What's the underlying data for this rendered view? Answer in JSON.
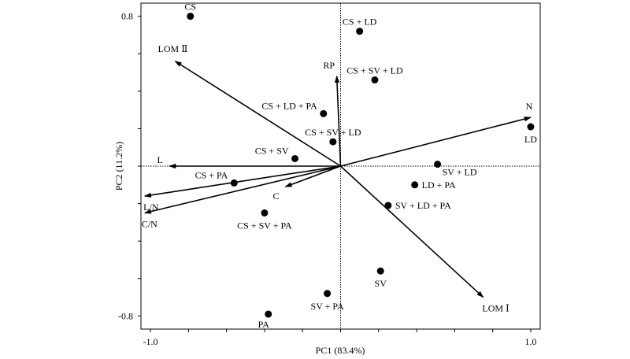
{
  "chart_data": {
    "type": "scatter",
    "subtype": "pca-biplot",
    "title": "",
    "xlabel": "PC1 (83.4%)",
    "ylabel": "PC2 (11.2%)",
    "xlim": [
      -1.05,
      1.05
    ],
    "ylim": [
      -0.87,
      0.87
    ],
    "x_ticks": [
      -1.0,
      1.0
    ],
    "x_tick_labels": [
      "-1.0",
      "1.0"
    ],
    "y_ticks": [
      0.8,
      -0.8
    ],
    "y_tick_labels": [
      "0.8",
      "-0.8"
    ],
    "grid": false,
    "zero_lines": true,
    "legend": "none",
    "points": [
      {
        "label": "CS",
        "x": -0.79,
        "y": 0.8,
        "label_pos": "above"
      },
      {
        "label": "CS + LD",
        "x": 0.1,
        "y": 0.72,
        "label_pos": "above"
      },
      {
        "label": "CS + SV + LD",
        "x": 0.18,
        "y": 0.46,
        "label_pos": "above"
      },
      {
        "label": "CS + LD + PA",
        "x": -0.09,
        "y": 0.28,
        "label_pos": "left"
      },
      {
        "label": "CS + SV + LD",
        "x": -0.04,
        "y": 0.13,
        "label_pos": "above"
      },
      {
        "label": "CS + SV",
        "x": -0.24,
        "y": 0.04,
        "label_pos": "left"
      },
      {
        "label": "SV + LD",
        "x": 0.51,
        "y": 0.01,
        "label_pos": "right-below"
      },
      {
        "label": "CS + PA",
        "x": -0.56,
        "y": -0.09,
        "label_pos": "left"
      },
      {
        "label": "LD + PA",
        "x": 0.39,
        "y": -0.1,
        "label_pos": "right"
      },
      {
        "label": "SV + LD + PA",
        "x": 0.25,
        "y": -0.21,
        "label_pos": "right"
      },
      {
        "label": "CS + SV + PA",
        "x": -0.4,
        "y": -0.25,
        "label_pos": "below"
      },
      {
        "label": "SV",
        "x": 0.21,
        "y": -0.56,
        "label_pos": "below"
      },
      {
        "label": "SV + PA",
        "x": -0.07,
        "y": -0.68,
        "label_pos": "below"
      },
      {
        "label": "PA",
        "x": -0.38,
        "y": -0.79,
        "label_pos": "below-left"
      },
      {
        "label": "LD",
        "x": 1.0,
        "y": 0.21,
        "label_pos": "below"
      }
    ],
    "vectors": [
      {
        "label": "N",
        "x": 1.0,
        "y": 0.26
      },
      {
        "label": "LOM Ⅰ",
        "x": 0.75,
        "y": -0.7
      },
      {
        "label": "LOM Ⅱ",
        "x": -0.87,
        "y": 0.56
      },
      {
        "label": "RP",
        "x": -0.02,
        "y": 0.48
      },
      {
        "label": "L",
        "x": -0.9,
        "y": 0.0
      },
      {
        "label": "C",
        "x": -0.29,
        "y": -0.11
      },
      {
        "label": "L/N",
        "x": -1.03,
        "y": -0.16
      },
      {
        "label": "C/N",
        "x": -1.03,
        "y": -0.25
      }
    ]
  }
}
